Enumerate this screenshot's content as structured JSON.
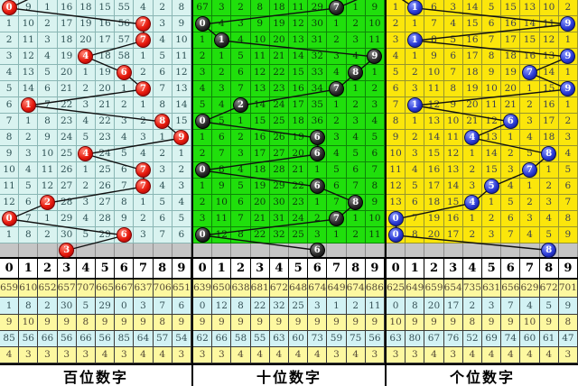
{
  "chart_data": {
    "type": "table",
    "title": "3D lottery digit trend chart (miss-count grid with drawn-digit balls)",
    "digit_axis": [
      "0",
      "1",
      "2",
      "3",
      "4",
      "5",
      "6",
      "7",
      "8",
      "9"
    ],
    "panels": [
      {
        "id": "hundreds-panel",
        "label": "百位数字",
        "ball_style": "red",
        "bg": "#d9f3f0",
        "grid": "#8ab6b4",
        "txt": "#2f5356",
        "stub_dx": 36,
        "drawn_digits": [
          0,
          7,
          7,
          4,
          6,
          7,
          1,
          8,
          9,
          4,
          7,
          7,
          2,
          0,
          6
        ],
        "rows": [
          [
            "*0",
            "9",
            "1",
            "16",
            "18",
            "15",
            "55",
            "4",
            "2",
            "8"
          ],
          [
            "1",
            "10",
            "2",
            "17",
            "19",
            "16",
            "56",
            "*7",
            "3",
            "9"
          ],
          [
            "2",
            "11",
            "3",
            "18",
            "20",
            "17",
            "57",
            "*7",
            "4",
            "10"
          ],
          [
            "3",
            "12",
            "4",
            "19",
            "*4",
            "18",
            "58",
            "1",
            "5",
            "11"
          ],
          [
            "4",
            "13",
            "5",
            "20",
            "1",
            "19",
            "*6",
            "2",
            "6",
            "12"
          ],
          [
            "5",
            "14",
            "6",
            "21",
            "2",
            "20",
            "1",
            "*7",
            "7",
            "13"
          ],
          [
            "6",
            "*1",
            "7",
            "22",
            "3",
            "21",
            "2",
            "1",
            "8",
            "14"
          ],
          [
            "7",
            "1",
            "8",
            "23",
            "4",
            "22",
            "3",
            "2",
            "*8",
            "15"
          ],
          [
            "8",
            "2",
            "9",
            "24",
            "5",
            "23",
            "4",
            "3",
            "1",
            "*9"
          ],
          [
            "9",
            "3",
            "10",
            "25",
            "*4",
            "24",
            "5",
            "4",
            "2",
            "1"
          ],
          [
            "10",
            "4",
            "11",
            "26",
            "1",
            "25",
            "6",
            "*7",
            "3",
            "2"
          ],
          [
            "11",
            "5",
            "12",
            "27",
            "2",
            "26",
            "7",
            "*7",
            "4",
            "3"
          ],
          [
            "12",
            "6",
            "*2",
            "28",
            "3",
            "27",
            "8",
            "1",
            "5",
            "4"
          ],
          [
            "*0",
            "7",
            "1",
            "29",
            "4",
            "28",
            "9",
            "2",
            "6",
            "5"
          ],
          [
            "1",
            "8",
            "2",
            "30",
            "5",
            "29",
            "*6",
            "3",
            "7",
            "6"
          ]
        ],
        "gray_ball_col": 3,
        "gray_ball_num": "3",
        "stats_rows": [
          [
            "659",
            "610",
            "652",
            "657",
            "707",
            "665",
            "667",
            "637",
            "706",
            "651"
          ],
          [
            "1",
            "8",
            "2",
            "30",
            "5",
            "29",
            "0",
            "3",
            "7",
            "6"
          ],
          [
            "9",
            "10",
            "9",
            "9",
            "8",
            "9",
            "9",
            "9",
            "8",
            "9"
          ],
          [
            "85",
            "56",
            "66",
            "56",
            "66",
            "56",
            "85",
            "64",
            "57",
            "54"
          ],
          [
            "4",
            "3",
            "3",
            "3",
            "3",
            "4",
            "3",
            "4",
            "4",
            "3"
          ]
        ]
      },
      {
        "id": "tens-panel",
        "label": "十位数字",
        "ball_style": "black",
        "bg": "#20df0c",
        "grid": "#0d8508",
        "txt": "#0b3a0c",
        "stub_dx": 40,
        "drawn_digits": [
          7,
          0,
          1,
          9,
          8,
          7,
          2,
          0,
          6,
          6,
          0,
          6,
          8,
          7,
          0
        ],
        "rows": [
          [
            "67",
            "3",
            "2",
            "8",
            "18",
            "11",
            "29",
            "*7",
            "1",
            "9"
          ],
          [
            "*0",
            "4",
            "3",
            "9",
            "19",
            "12",
            "30",
            "1",
            "2",
            "10"
          ],
          [
            "1",
            "*1",
            "4",
            "10",
            "20",
            "13",
            "31",
            "2",
            "3",
            "11"
          ],
          [
            "2",
            "1",
            "5",
            "11",
            "21",
            "14",
            "32",
            "3",
            "4",
            "*9"
          ],
          [
            "3",
            "2",
            "6",
            "12",
            "22",
            "15",
            "33",
            "4",
            "*8",
            "1"
          ],
          [
            "4",
            "3",
            "7",
            "13",
            "23",
            "16",
            "34",
            "*7",
            "1",
            "2"
          ],
          [
            "5",
            "4",
            "*2",
            "14",
            "24",
            "17",
            "35",
            "1",
            "2",
            "3"
          ],
          [
            "*0",
            "5",
            "1",
            "15",
            "25",
            "18",
            "36",
            "2",
            "3",
            "4"
          ],
          [
            "1",
            "6",
            "2",
            "16",
            "26",
            "19",
            "*6",
            "3",
            "4",
            "5"
          ],
          [
            "2",
            "7",
            "3",
            "17",
            "27",
            "20",
            "*6",
            "4",
            "5",
            "6"
          ],
          [
            "*0",
            "8",
            "4",
            "18",
            "28",
            "21",
            "1",
            "5",
            "6",
            "7"
          ],
          [
            "1",
            "9",
            "5",
            "19",
            "29",
            "22",
            "*6",
            "6",
            "7",
            "8"
          ],
          [
            "2",
            "10",
            "6",
            "20",
            "30",
            "23",
            "1",
            "7",
            "*8",
            "9"
          ],
          [
            "3",
            "11",
            "7",
            "21",
            "31",
            "24",
            "2",
            "*7",
            "1",
            "10"
          ],
          [
            "*0",
            "12",
            "8",
            "22",
            "32",
            "25",
            "3",
            "1",
            "2",
            "11"
          ]
        ],
        "gray_ball_col": 6,
        "gray_ball_num": "6",
        "stats_rows": [
          [
            "639",
            "650",
            "638",
            "681",
            "672",
            "648",
            "674",
            "649",
            "674",
            "686"
          ],
          [
            "0",
            "12",
            "8",
            "22",
            "32",
            "25",
            "3",
            "1",
            "2",
            "11"
          ],
          [
            "9",
            "9",
            "9",
            "9",
            "9",
            "9",
            "9",
            "9",
            "9",
            "9"
          ],
          [
            "62",
            "66",
            "58",
            "55",
            "63",
            "60",
            "73",
            "59",
            "75",
            "56"
          ],
          [
            "3",
            "3",
            "4",
            "4",
            "4",
            "4",
            "4",
            "3",
            "4",
            "3"
          ]
        ]
      },
      {
        "id": "units-panel",
        "label": "个位数字",
        "ball_style": "blue",
        "bg": "#fbe60b",
        "grid": "#97942e",
        "txt": "#3c4050",
        "stub_dx": -26,
        "drawn_digits": [
          1,
          9,
          1,
          9,
          7,
          9,
          1,
          6,
          4,
          8,
          7,
          5,
          4,
          0,
          0
        ],
        "rows": [
          [
            "1",
            "*1",
            "6",
            "3",
            "14",
            "5",
            "15",
            "13",
            "10",
            "2"
          ],
          [
            "2",
            "1",
            "7",
            "4",
            "15",
            "6",
            "16",
            "14",
            "11",
            "*9"
          ],
          [
            "3",
            "*1",
            "8",
            "5",
            "16",
            "7",
            "17",
            "15",
            "12",
            "1"
          ],
          [
            "4",
            "1",
            "9",
            "6",
            "17",
            "8",
            "18",
            "16",
            "13",
            "*9"
          ],
          [
            "5",
            "2",
            "10",
            "7",
            "18",
            "9",
            "19",
            "*7",
            "14",
            "1"
          ],
          [
            "6",
            "3",
            "11",
            "8",
            "19",
            "10",
            "20",
            "1",
            "15",
            "*9"
          ],
          [
            "7",
            "*1",
            "12",
            "9",
            "20",
            "11",
            "21",
            "2",
            "16",
            "1"
          ],
          [
            "8",
            "1",
            "13",
            "10",
            "21",
            "12",
            "*6",
            "3",
            "17",
            "2"
          ],
          [
            "9",
            "2",
            "14",
            "11",
            "*4",
            "13",
            "1",
            "4",
            "18",
            "3"
          ],
          [
            "10",
            "3",
            "15",
            "12",
            "1",
            "14",
            "2",
            "5",
            "*8",
            "4"
          ],
          [
            "11",
            "4",
            "16",
            "13",
            "2",
            "15",
            "3",
            "*7",
            "1",
            "5"
          ],
          [
            "12",
            "5",
            "17",
            "14",
            "3",
            "*5",
            "4",
            "1",
            "2",
            "6"
          ],
          [
            "13",
            "6",
            "18",
            "15",
            "*4",
            "1",
            "5",
            "2",
            "3",
            "7"
          ],
          [
            "*0",
            "7",
            "19",
            "16",
            "1",
            "2",
            "6",
            "3",
            "4",
            "8"
          ],
          [
            "*0",
            "8",
            "20",
            "17",
            "2",
            "3",
            "7",
            "4",
            "5",
            "9"
          ]
        ],
        "gray_ball_col": 8,
        "gray_ball_num": "8",
        "stats_rows": [
          [
            "625",
            "649",
            "659",
            "654",
            "735",
            "631",
            "656",
            "629",
            "672",
            "701"
          ],
          [
            "0",
            "8",
            "20",
            "17",
            "2",
            "3",
            "7",
            "4",
            "5",
            "9"
          ],
          [
            "10",
            "9",
            "9",
            "9",
            "8",
            "9",
            "9",
            "10",
            "9",
            "8"
          ],
          [
            "63",
            "80",
            "67",
            "76",
            "52",
            "69",
            "74",
            "60",
            "61",
            "47"
          ],
          [
            "3",
            "3",
            "4",
            "3",
            "4",
            "4",
            "4",
            "4",
            "4",
            "3"
          ]
        ]
      }
    ]
  }
}
